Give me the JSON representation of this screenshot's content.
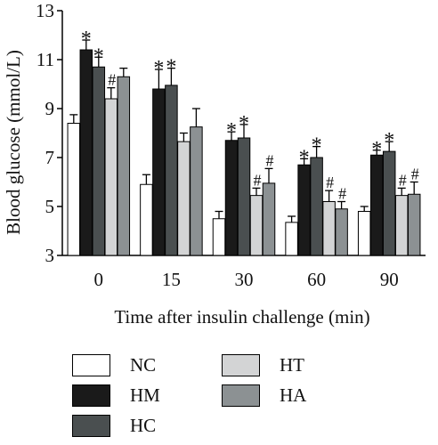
{
  "chart_data": {
    "type": "bar",
    "xlabel": "Time after insulin challenge (min)",
    "ylabel": "Blood glucose (mmol/L)",
    "ylim": [
      3,
      13
    ],
    "yticks": [
      "3",
      "5",
      "7",
      "9",
      "11",
      "13"
    ],
    "categories": [
      "0",
      "15",
      "30",
      "60",
      "90"
    ],
    "series": [
      {
        "name": "NC",
        "color": "#ffffff",
        "values": [
          8.4,
          5.9,
          4.5,
          4.35,
          4.8
        ],
        "errors": [
          0.35,
          0.4,
          0.3,
          0.25,
          0.2
        ],
        "marks": [
          "",
          "",
          "",
          "",
          ""
        ]
      },
      {
        "name": "HM",
        "color": "#1a1a1a",
        "values": [
          11.4,
          9.8,
          7.7,
          6.7,
          7.1
        ],
        "errors": [
          0.4,
          0.8,
          0.35,
          0.25,
          0.2
        ],
        "marks": [
          "*",
          "*",
          "*",
          "*",
          "*"
        ]
      },
      {
        "name": "HC",
        "color": "#4a4f50",
        "values": [
          10.7,
          9.95,
          7.8,
          7.0,
          7.25
        ],
        "errors": [
          0.4,
          0.7,
          0.55,
          0.45,
          0.4
        ],
        "marks": [
          "*",
          "*",
          "*",
          "*",
          "*"
        ]
      },
      {
        "name": "HT",
        "color": "#d3d4d5",
        "values": [
          9.4,
          7.65,
          5.45,
          5.2,
          5.45
        ],
        "errors": [
          0.45,
          0.35,
          0.3,
          0.45,
          0.3
        ],
        "marks": [
          "#",
          "",
          "#",
          "#",
          "#"
        ]
      },
      {
        "name": "HA",
        "color": "#8c9193",
        "values": [
          10.3,
          8.25,
          5.95,
          4.9,
          5.5
        ],
        "errors": [
          0.35,
          0.75,
          0.6,
          0.3,
          0.5
        ],
        "marks": [
          "",
          "",
          "#",
          "#",
          "#"
        ]
      }
    ],
    "legend_position": "bottom"
  }
}
